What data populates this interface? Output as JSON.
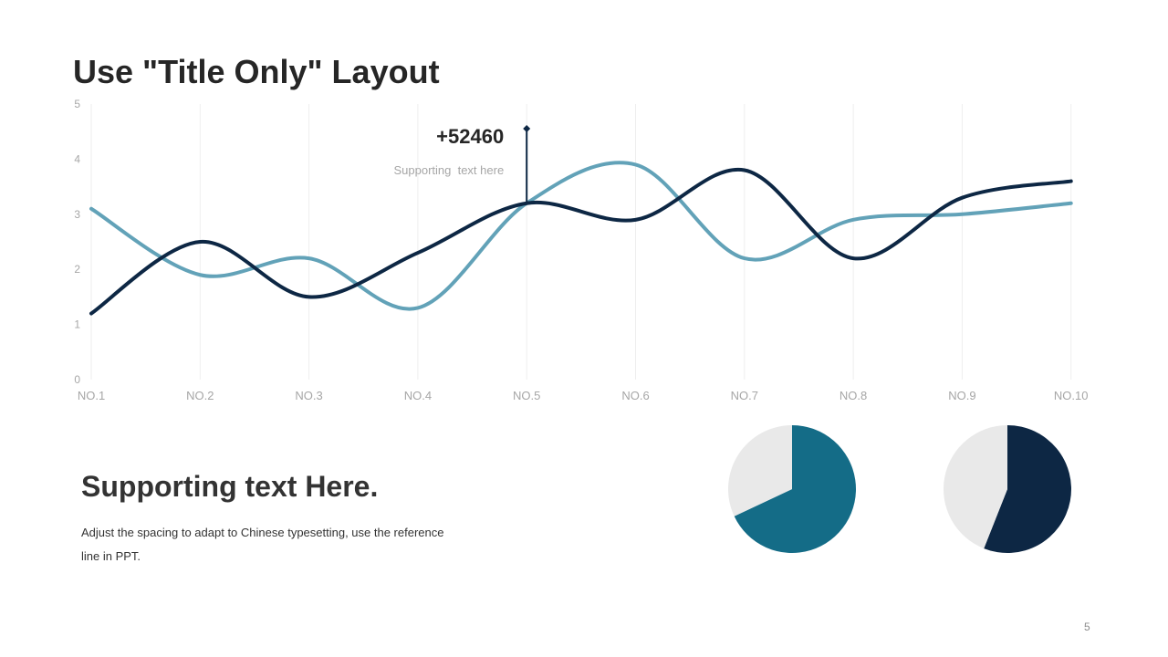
{
  "slide": {
    "title": "Use \"Title Only\" Layout",
    "subheading": "Supporting text Here.",
    "body": "Adjust the spacing to adapt to Chinese typesetting, use the reference line in PPT.",
    "page_number": "5"
  },
  "callout": {
    "value": "+52460",
    "caption": "Supporting  text here",
    "category": "NO.5"
  },
  "colors": {
    "series_1": "#0d2744",
    "series_2": "#62a2b8",
    "pie_1": "#146c87",
    "pie_2": "#0d2744",
    "pie_remainder": "#e9e9e9",
    "grid": "#eeeeee",
    "axis_text": "#a6a6a6"
  },
  "chart_data": [
    {
      "type": "line",
      "categories": [
        "NO.1",
        "NO.2",
        "NO.3",
        "NO.4",
        "NO.5",
        "NO.6",
        "NO.7",
        "NO.8",
        "NO.9",
        "NO.10"
      ],
      "series": [
        {
          "values": [
            1.2,
            2.5,
            1.5,
            2.3,
            3.2,
            2.9,
            3.8,
            2.2,
            3.3,
            3.6
          ]
        },
        {
          "values": [
            3.1,
            1.9,
            2.2,
            1.3,
            3.2,
            3.9,
            2.2,
            2.9,
            3.0,
            3.2
          ]
        }
      ],
      "ylim": [
        0,
        5
      ],
      "yticks": [
        0,
        1,
        2,
        3,
        4,
        5
      ],
      "smooth": true,
      "grid": "vertical",
      "legend": "none"
    },
    {
      "type": "pie",
      "values": [
        68,
        32
      ],
      "legend": "none"
    },
    {
      "type": "pie",
      "values": [
        56,
        44
      ],
      "legend": "none"
    }
  ]
}
